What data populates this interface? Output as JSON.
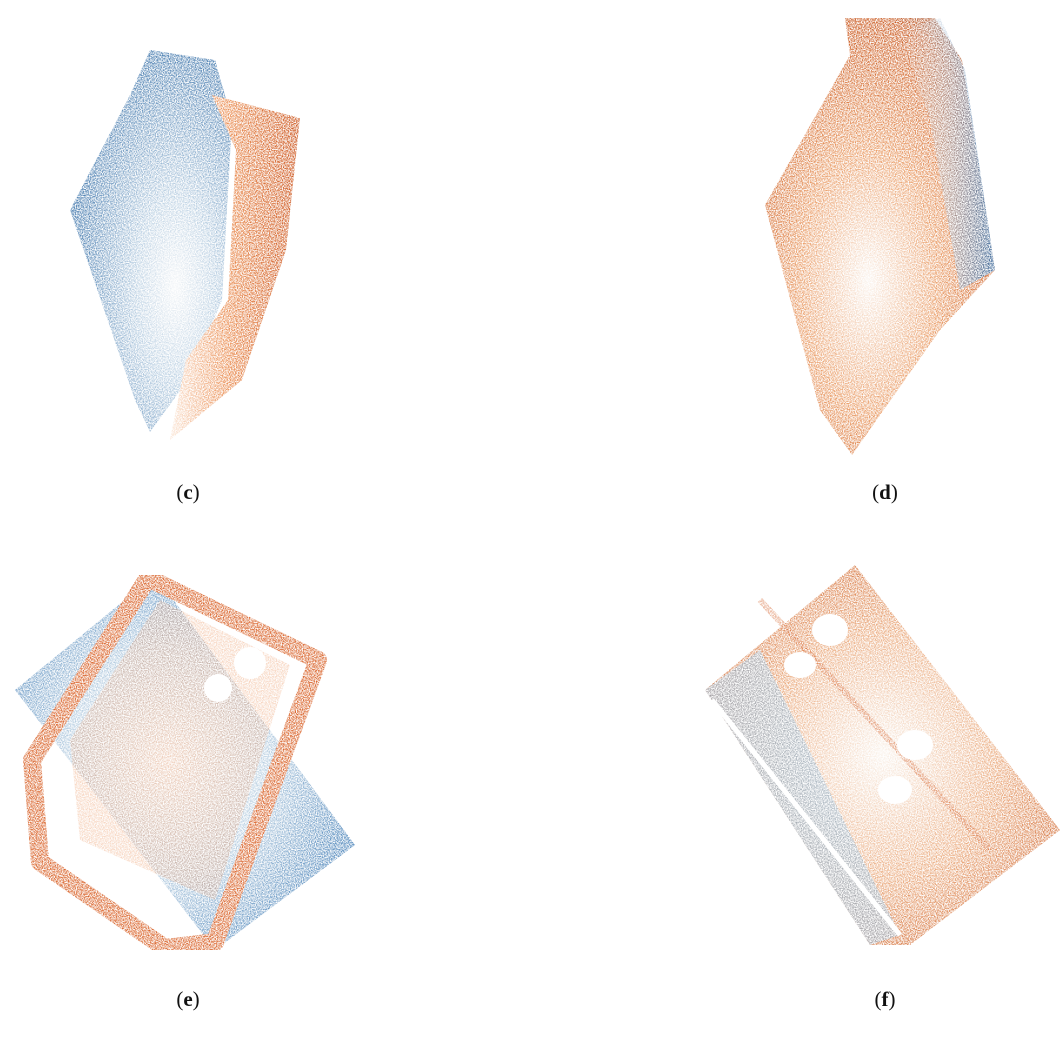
{
  "panels": [
    {
      "open": "(",
      "letter": "c",
      "close": ")"
    },
    {
      "open": "(",
      "letter": "d",
      "close": ")"
    },
    {
      "open": "(",
      "letter": "e",
      "close": ")"
    },
    {
      "open": "(",
      "letter": "f",
      "close": ")"
    }
  ]
}
